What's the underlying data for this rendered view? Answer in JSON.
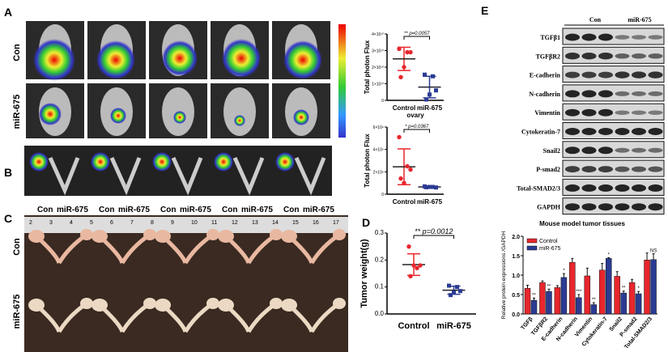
{
  "panels": {
    "a": "A",
    "b": "B",
    "c": "C",
    "d": "D",
    "e": "E"
  },
  "groups": {
    "con": "Con",
    "mir": "miR-675",
    "control": "Control"
  },
  "colors": {
    "control": "#e8262d",
    "mir": "#2b3b93"
  },
  "panel_c_ruler": [
    "2",
    "3",
    "4",
    "5",
    "6",
    "7",
    "8",
    "9",
    "10",
    "11",
    "12",
    "13",
    "14",
    "15",
    "16",
    "17"
  ],
  "chart_data": [
    {
      "type": "scatter",
      "panel": "A",
      "ylabel": "Total photon Flux",
      "categories": [
        "Control",
        "miR-675"
      ],
      "yticks": [
        "0",
        "1×10¹⁰",
        "2×10¹⁰",
        "3×10¹⁰",
        "4×10¹⁰"
      ],
      "ylim": [
        0,
        4
      ],
      "series": [
        {
          "name": "Control",
          "values": [
            3.1,
            2.9,
            2.9,
            2.0,
            1.4
          ],
          "mean": 2.5,
          "sd": 0.7
        },
        {
          "name": "miR-675",
          "values": [
            1.55,
            1.45,
            0.6,
            0.35,
            0.05
          ],
          "mean": 0.8,
          "sd": 0.65
        }
      ],
      "annotation": "** p=0.0057"
    },
    {
      "type": "scatter",
      "panel": "A",
      "title": "ovary",
      "ylabel": "Total photon Flux",
      "categories": [
        "Control",
        "miR-675"
      ],
      "yticks": [
        "0",
        "2×10⁹",
        "4×10⁹",
        "6×10⁹"
      ],
      "ylim": [
        0,
        6
      ],
      "series": [
        {
          "name": "Control",
          "values": [
            5.1,
            2.5,
            2.2,
            1.0,
            1.4
          ],
          "mean": 2.45,
          "sd": 1.6
        },
        {
          "name": "miR-675",
          "values": [
            0.7,
            0.65,
            0.6,
            0.65,
            0.62
          ],
          "mean": 0.65,
          "sd": 0.05
        }
      ],
      "annotation": "* p=0.0367"
    },
    {
      "type": "scatter",
      "panel": "D",
      "ylabel": "Tumor weight(g)",
      "categories": [
        "Control",
        "miR-675"
      ],
      "yticks": [
        "0.0",
        "0.1",
        "0.2",
        "0.3"
      ],
      "ylim": [
        0,
        0.3
      ],
      "series": [
        {
          "name": "Control",
          "values": [
            0.25,
            0.17,
            0.18,
            0.18,
            0.14
          ],
          "mean": 0.183,
          "sd": 0.04
        },
        {
          "name": "miR-675",
          "values": [
            0.105,
            0.1,
            0.085,
            0.08,
            0.07
          ],
          "mean": 0.088,
          "sd": 0.015
        }
      ],
      "annotation": "** p=0.0012"
    },
    {
      "type": "bar",
      "panel": "E",
      "title": "Mouse model tumor tissues",
      "ylabel": "Relative protein expressions /GAPDH",
      "categories": [
        "TGFβ",
        "TGFβR2",
        "E-cadherin",
        "N-cadherin",
        "Vimentin",
        "Cytokeratin-7",
        "Snail2",
        "P-smad2",
        "Total-SMAD2/3"
      ],
      "yticks": [
        "0.0",
        "0.5",
        "1.0",
        "1.5",
        "2.0"
      ],
      "ylim": [
        0,
        2
      ],
      "legend": "top-left",
      "series": [
        {
          "name": "Control",
          "values": [
            0.66,
            0.81,
            0.68,
            1.33,
            0.98,
            1.13,
            0.97,
            0.81,
            1.39
          ],
          "errors": [
            0.08,
            0.04,
            0.05,
            0.1,
            0.2,
            0.17,
            0.12,
            0.08,
            0.18
          ]
        },
        {
          "name": "miR-675",
          "values": [
            0.35,
            0.58,
            0.94,
            0.42,
            0.24,
            1.43,
            0.54,
            0.52,
            1.4
          ],
          "errors": [
            0.06,
            0.06,
            0.1,
            0.08,
            0.05,
            0.02,
            0.05,
            0.06,
            0.15
          ]
        }
      ],
      "significance": [
        "**",
        "**",
        "*",
        "***",
        "**",
        "*",
        "**",
        "*",
        "NS"
      ]
    }
  ],
  "western_blot": {
    "header": [
      "Con",
      "miR-675"
    ],
    "rows": [
      "TGFβ1",
      "TGFβR2",
      "E-cadherin",
      "N-cadherin",
      "Vimentin",
      "Cytokeratin-7",
      "Snail2",
      "P-smad2",
      "Total-SMAD2/3",
      "GAPDH"
    ]
  }
}
